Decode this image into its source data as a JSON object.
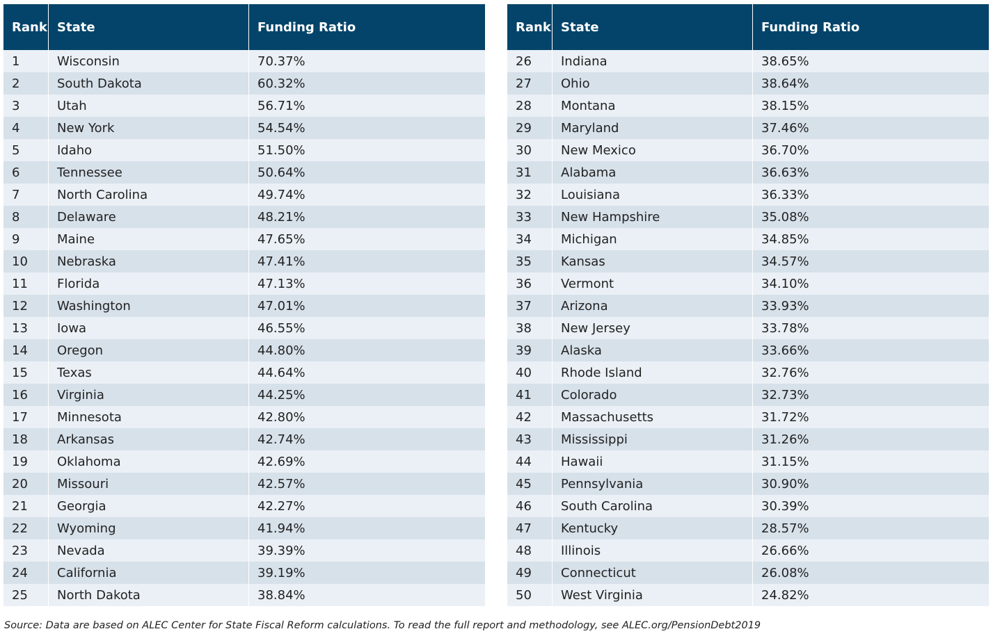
{
  "tables": [
    {
      "headers": [
        "Rank",
        "State",
        "Funding Ratio"
      ],
      "rows": [
        [
          1,
          "Wisconsin",
          "70.37%"
        ],
        [
          2,
          "South Dakota",
          "60.32%"
        ],
        [
          3,
          "Utah",
          "56.71%"
        ],
        [
          4,
          "New York",
          "54.54%"
        ],
        [
          5,
          "Idaho",
          "51.50%"
        ],
        [
          6,
          "Tennessee",
          "50.64%"
        ],
        [
          7,
          "North Carolina",
          "49.74%"
        ],
        [
          8,
          "Delaware",
          "48.21%"
        ],
        [
          9,
          "Maine",
          "47.65%"
        ],
        [
          10,
          "Nebraska",
          "47.41%"
        ],
        [
          11,
          "Florida",
          "47.13%"
        ],
        [
          12,
          "Washington",
          "47.01%"
        ],
        [
          13,
          "Iowa",
          "46.55%"
        ],
        [
          14,
          "Oregon",
          "44.80%"
        ],
        [
          15,
          "Texas",
          "44.64%"
        ],
        [
          16,
          "Virginia",
          "44.25%"
        ],
        [
          17,
          "Minnesota",
          "42.80%"
        ],
        [
          18,
          "Arkansas",
          "42.74%"
        ],
        [
          19,
          "Oklahoma",
          "42.69%"
        ],
        [
          20,
          "Missouri",
          "42.57%"
        ],
        [
          21,
          "Georgia",
          "42.27%"
        ],
        [
          22,
          "Wyoming",
          "41.94%"
        ],
        [
          23,
          "Nevada",
          "39.39%"
        ],
        [
          24,
          "California",
          "39.19%"
        ],
        [
          25,
          "North Dakota",
          "38.84%"
        ]
      ]
    },
    {
      "headers": [
        "Rank",
        "State",
        "Funding Ratio"
      ],
      "rows": [
        [
          26,
          "Indiana",
          "38.65%"
        ],
        [
          27,
          "Ohio",
          "38.64%"
        ],
        [
          28,
          "Montana",
          "38.15%"
        ],
        [
          29,
          "Maryland",
          "37.46%"
        ],
        [
          30,
          "New Mexico",
          "36.70%"
        ],
        [
          31,
          "Alabama",
          "36.63%"
        ],
        [
          32,
          "Louisiana",
          "36.33%"
        ],
        [
          33,
          "New Hampshire",
          "35.08%"
        ],
        [
          34,
          "Michigan",
          "34.85%"
        ],
        [
          35,
          "Kansas",
          "34.57%"
        ],
        [
          36,
          "Vermont",
          "34.10%"
        ],
        [
          37,
          "Arizona",
          "33.93%"
        ],
        [
          38,
          "New Jersey",
          "33.78%"
        ],
        [
          39,
          "Alaska",
          "33.66%"
        ],
        [
          40,
          "Rhode Island",
          "32.76%"
        ],
        [
          41,
          "Colorado",
          "32.73%"
        ],
        [
          42,
          "Massachusetts",
          "31.72%"
        ],
        [
          43,
          "Mississippi",
          "31.26%"
        ],
        [
          44,
          "Hawaii",
          "31.15%"
        ],
        [
          45,
          "Pennsylvania",
          "30.90%"
        ],
        [
          46,
          "South Carolina",
          "30.39%"
        ],
        [
          47,
          "Kentucky",
          "28.57%"
        ],
        [
          48,
          "Illinois",
          "26.66%"
        ],
        [
          49,
          "Connecticut",
          "26.08%"
        ],
        [
          50,
          "West Virginia",
          "24.82%"
        ]
      ]
    }
  ],
  "source": "Source: Data are based on ALEC Center for State Fiscal Reform calculations. To read the full report and methodology, see ALEC.org/PensionDebt2019"
}
